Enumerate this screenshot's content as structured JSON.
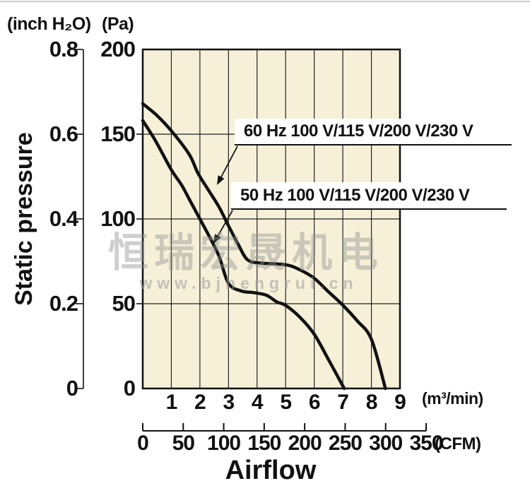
{
  "page": {
    "background": "#ffffff",
    "top_border_color": "#cdcdcd"
  },
  "axes": {
    "unit_inch": "(inch H₂O)",
    "unit_pa": "(Pa)",
    "y_title": "Static pressure",
    "x_title": "Airflow",
    "unit_m3min": "(m³/min)",
    "unit_cfm": "(CFM)"
  },
  "watermark": {
    "line1": "恒瑞宏晟机电",
    "line2": "www.bjhengrui.cn"
  },
  "chart_data": {
    "type": "line",
    "title": "",
    "xlabel": "Airflow",
    "ylabel": "Static pressure",
    "x_axis": {
      "primary_unit": "m³/min",
      "secondary_unit": "CFM",
      "m3min_tick_labels": [
        "1",
        "2",
        "3",
        "4",
        "5",
        "6",
        "7",
        "8",
        "9"
      ],
      "cfm_tick_labels": [
        "0",
        "50",
        "100",
        "150",
        "200",
        "250",
        "300",
        "350"
      ],
      "xlim_m3min": [
        0,
        9
      ],
      "xlim_cfm": [
        0,
        350
      ]
    },
    "y_axis": {
      "primary_unit": "Pa",
      "secondary_unit": "inch H₂O",
      "pa_tick_labels": [
        "200",
        "150",
        "100",
        "50",
        "0"
      ],
      "inch_tick_labels": [
        "0.8",
        "0.6",
        "0.4",
        "0.2",
        "0"
      ],
      "ylim_pa": [
        0,
        200
      ],
      "gridline_pa": [
        50,
        100,
        150
      ]
    },
    "grid": true,
    "plot_bg": "#f6f0d9",
    "line_color": "#111111",
    "series": [
      {
        "name": "60 Hz 100 V/115 V/200 V/230 V",
        "points_m3min_pa": [
          [
            0,
            168
          ],
          [
            0.5,
            161
          ],
          [
            1,
            152
          ],
          [
            1.63,
            138
          ],
          [
            1.93,
            127
          ],
          [
            2.3,
            117
          ],
          [
            2.67,
            107
          ],
          [
            3.0,
            96
          ],
          [
            3.34,
            85
          ],
          [
            3.66,
            76
          ],
          [
            4.1,
            74
          ],
          [
            5.0,
            73
          ],
          [
            5.5,
            70
          ],
          [
            6.0,
            65
          ],
          [
            6.5,
            57
          ],
          [
            6.95,
            50
          ],
          [
            7.5,
            40
          ],
          [
            8.0,
            29
          ],
          [
            8.49,
            0
          ]
        ]
      },
      {
        "name": "50 Hz 100 V/115 V/200 V/230 V",
        "points_m3min_pa": [
          [
            0,
            158
          ],
          [
            0.45,
            146
          ],
          [
            1,
            129
          ],
          [
            1.36,
            120
          ],
          [
            1.68,
            110
          ],
          [
            2.0,
            100
          ],
          [
            2.35,
            89
          ],
          [
            2.67,
            78
          ],
          [
            3.0,
            62
          ],
          [
            3.45,
            57.5
          ],
          [
            3.9,
            56.5
          ],
          [
            4.33,
            55
          ],
          [
            4.7,
            51
          ],
          [
            5.0,
            49
          ],
          [
            5.5,
            42
          ],
          [
            6.0,
            32
          ],
          [
            6.5,
            17
          ],
          [
            7.05,
            0
          ]
        ]
      }
    ],
    "annotations": [
      {
        "text": "60 Hz 100 V/115 V/200 V/230 V",
        "arrow_from": [
          336,
          207
        ],
        "arrow_to": [
          307,
          262
        ]
      },
      {
        "text": "50 Hz 100 V/115 V/200 V/230 V",
        "arrow_from": [
          329,
          298
        ],
        "arrow_to": [
          302,
          345
        ]
      }
    ]
  }
}
